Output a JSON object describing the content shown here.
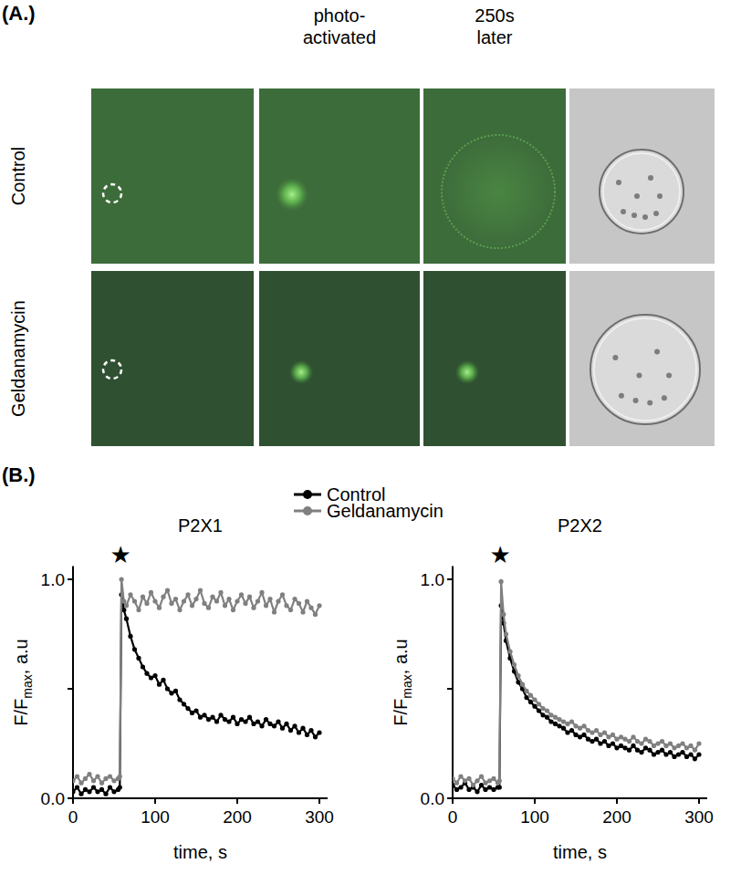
{
  "panel_a": {
    "label": "(A.)",
    "column_headers": [
      null,
      [
        "photo-",
        "activated"
      ],
      [
        "250s",
        "later"
      ],
      null
    ],
    "row_labels": [
      "Control",
      "Geldanamycin"
    ]
  },
  "panel_b": {
    "label": "(B.)"
  },
  "chart_data": [
    {
      "type": "line",
      "title": "P2X1",
      "x_label": "time, s",
      "y_label": "F/Fmax, a.u",
      "y_label_subscript": "max",
      "legend": "top",
      "xlim": [
        0,
        310
      ],
      "ylim": [
        0,
        1.06
      ],
      "xticks": [
        0,
        100,
        200,
        300
      ],
      "yticks": [
        {
          "value": 0,
          "label": "0.0"
        },
        {
          "value": 0.5,
          "label": null
        },
        {
          "value": 1,
          "label": "1.0"
        }
      ],
      "annotations": [
        {
          "text": "★",
          "x": 58
        }
      ],
      "x": [
        0,
        5,
        10,
        15,
        20,
        25,
        30,
        35,
        40,
        45,
        50,
        55,
        57,
        59,
        62,
        65,
        70,
        75,
        80,
        85,
        90,
        95,
        100,
        105,
        110,
        115,
        120,
        125,
        130,
        135,
        140,
        145,
        150,
        155,
        160,
        165,
        170,
        175,
        180,
        185,
        190,
        195,
        200,
        205,
        210,
        215,
        220,
        225,
        230,
        235,
        240,
        245,
        250,
        255,
        260,
        265,
        270,
        275,
        280,
        285,
        290,
        295,
        300
      ],
      "series": [
        {
          "name": "Control",
          "color": "#000000",
          "marker": "circle",
          "values": [
            0.03,
            0.05,
            0.02,
            0.04,
            0.03,
            0.05,
            0.03,
            0.04,
            0.02,
            0.05,
            0.03,
            0.04,
            0.05,
            0.93,
            0.86,
            0.82,
            0.74,
            0.68,
            0.64,
            0.6,
            0.57,
            0.55,
            0.56,
            0.52,
            0.54,
            0.5,
            0.48,
            0.49,
            0.45,
            0.43,
            0.41,
            0.39,
            0.4,
            0.37,
            0.38,
            0.36,
            0.37,
            0.35,
            0.38,
            0.36,
            0.35,
            0.37,
            0.34,
            0.36,
            0.35,
            0.37,
            0.34,
            0.35,
            0.33,
            0.36,
            0.34,
            0.33,
            0.35,
            0.32,
            0.34,
            0.31,
            0.33,
            0.3,
            0.32,
            0.29,
            0.31,
            0.28,
            0.3
          ]
        },
        {
          "name": "Geldanamycin",
          "color": "#808080",
          "marker": "circle",
          "values": [
            0.08,
            0.1,
            0.07,
            0.09,
            0.11,
            0.08,
            0.1,
            0.07,
            0.09,
            0.1,
            0.08,
            0.09,
            0.1,
            1.0,
            0.9,
            0.88,
            0.93,
            0.9,
            0.86,
            0.92,
            0.89,
            0.94,
            0.9,
            0.87,
            0.92,
            0.95,
            0.89,
            0.91,
            0.86,
            0.9,
            0.93,
            0.88,
            0.91,
            0.95,
            0.89,
            0.87,
            0.92,
            0.9,
            0.94,
            0.88,
            0.91,
            0.86,
            0.9,
            0.93,
            0.89,
            0.92,
            0.87,
            0.9,
            0.94,
            0.88,
            0.91,
            0.85,
            0.9,
            0.93,
            0.88,
            0.86,
            0.91,
            0.89,
            0.85,
            0.9,
            0.87,
            0.84,
            0.88
          ]
        }
      ]
    },
    {
      "type": "line",
      "title": "P2X2",
      "x_label": "time, s",
      "y_label": "F/Fmax, a.u",
      "y_label_subscript": "max",
      "xlim": [
        0,
        310
      ],
      "ylim": [
        0,
        1.06
      ],
      "xticks": [
        0,
        100,
        200,
        300
      ],
      "yticks": [
        {
          "value": 0,
          "label": "0.0"
        },
        {
          "value": 0.5,
          "label": null
        },
        {
          "value": 1,
          "label": "1.0"
        }
      ],
      "annotations": [
        {
          "text": "★",
          "x": 58
        }
      ],
      "x": [
        0,
        5,
        10,
        15,
        20,
        25,
        30,
        35,
        40,
        45,
        50,
        55,
        57,
        59,
        62,
        65,
        70,
        75,
        80,
        85,
        90,
        95,
        100,
        105,
        110,
        115,
        120,
        125,
        130,
        135,
        140,
        145,
        150,
        155,
        160,
        165,
        170,
        175,
        180,
        185,
        190,
        195,
        200,
        205,
        210,
        215,
        220,
        225,
        230,
        235,
        240,
        245,
        250,
        255,
        260,
        265,
        270,
        275,
        280,
        285,
        290,
        295,
        300
      ],
      "series": [
        {
          "name": "Control",
          "color": "#000000",
          "marker": "circle",
          "values": [
            0.06,
            0.04,
            0.05,
            0.07,
            0.04,
            0.05,
            0.03,
            0.06,
            0.04,
            0.05,
            0.04,
            0.05,
            0.05,
            0.88,
            0.8,
            0.72,
            0.64,
            0.58,
            0.53,
            0.5,
            0.46,
            0.44,
            0.42,
            0.4,
            0.38,
            0.37,
            0.35,
            0.34,
            0.33,
            0.32,
            0.3,
            0.31,
            0.29,
            0.28,
            0.29,
            0.27,
            0.26,
            0.27,
            0.25,
            0.26,
            0.24,
            0.25,
            0.23,
            0.24,
            0.23,
            0.22,
            0.24,
            0.22,
            0.21,
            0.23,
            0.22,
            0.2,
            0.21,
            0.22,
            0.2,
            0.21,
            0.19,
            0.2,
            0.21,
            0.19,
            0.2,
            0.18,
            0.2
          ]
        },
        {
          "name": "Geldanamycin",
          "color": "#808080",
          "marker": "circle",
          "values": [
            0.09,
            0.07,
            0.1,
            0.08,
            0.09,
            0.06,
            0.08,
            0.1,
            0.07,
            0.08,
            0.09,
            0.07,
            0.08,
            0.99,
            0.84,
            0.75,
            0.67,
            0.61,
            0.56,
            0.52,
            0.49,
            0.47,
            0.45,
            0.43,
            0.41,
            0.4,
            0.38,
            0.37,
            0.36,
            0.35,
            0.34,
            0.35,
            0.33,
            0.32,
            0.33,
            0.31,
            0.3,
            0.31,
            0.29,
            0.3,
            0.28,
            0.29,
            0.27,
            0.28,
            0.27,
            0.26,
            0.28,
            0.26,
            0.25,
            0.27,
            0.26,
            0.24,
            0.25,
            0.26,
            0.24,
            0.25,
            0.23,
            0.24,
            0.25,
            0.23,
            0.24,
            0.22,
            0.25
          ]
        }
      ]
    }
  ]
}
